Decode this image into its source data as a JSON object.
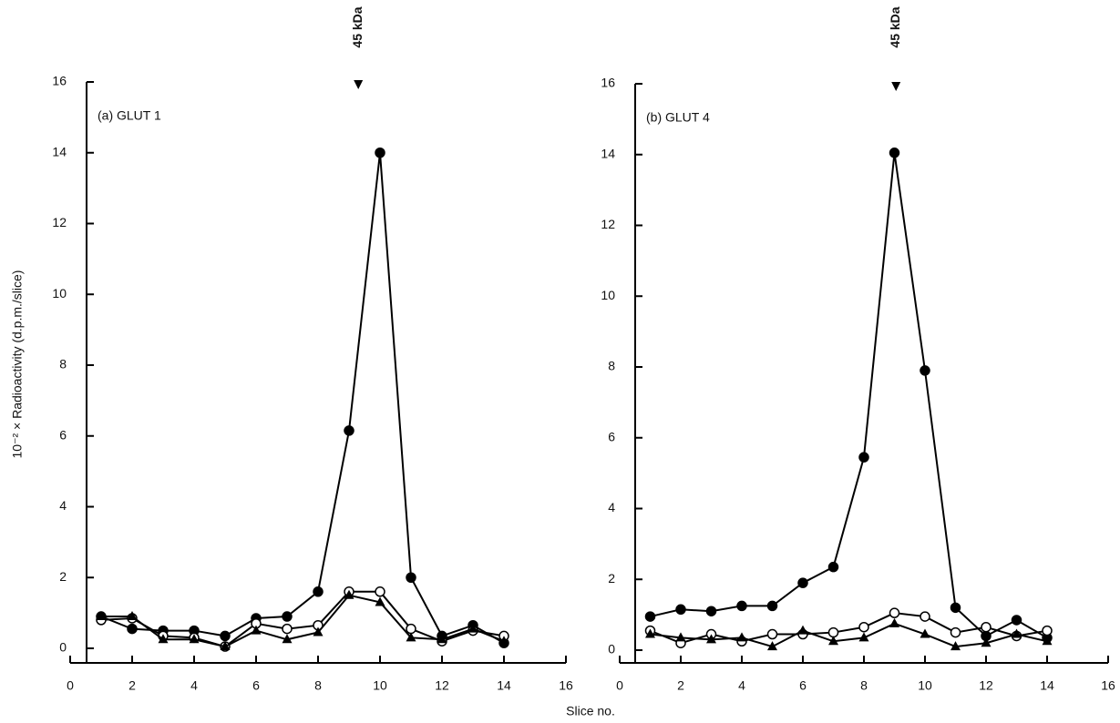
{
  "figure": {
    "xlabel": "Slice no.",
    "ylabel": "10⁻² × Radioactivity (d.p.m./slice)"
  },
  "chart_data": [
    {
      "type": "line",
      "title": "(a) GLUT 1",
      "annotation": {
        "text": "45 kDa",
        "x": 9.3
      },
      "x": [
        1,
        2,
        3,
        4,
        5,
        6,
        7,
        8,
        9,
        10,
        11,
        12,
        13,
        14
      ],
      "series": [
        {
          "marker": "filled-circle",
          "color": "#000",
          "values": [
            0.9,
            0.55,
            0.5,
            0.5,
            0.35,
            0.85,
            0.9,
            1.6,
            6.15,
            14.0,
            2.0,
            0.35,
            0.65,
            0.15
          ]
        },
        {
          "marker": "open-circle",
          "color": "#000",
          "values": [
            0.8,
            0.85,
            0.35,
            0.3,
            0.05,
            0.7,
            0.55,
            0.65,
            1.6,
            1.6,
            0.55,
            0.2,
            0.5,
            0.35
          ]
        },
        {
          "marker": "triangle",
          "color": "#000",
          "values": [
            0.9,
            0.9,
            0.25,
            0.25,
            0.05,
            0.5,
            0.25,
            0.45,
            1.5,
            1.3,
            0.3,
            0.25,
            0.55,
            0.2
          ]
        }
      ],
      "xlim": [
        0,
        16
      ],
      "ylim": [
        0,
        16
      ],
      "xticks": [
        0,
        2,
        4,
        6,
        8,
        10,
        12,
        14,
        16
      ],
      "yticks": [
        0,
        2,
        4,
        6,
        8,
        10,
        12,
        14,
        16
      ]
    },
    {
      "type": "line",
      "title": "(b) GLUT 4",
      "annotation": {
        "text": "45 kDa",
        "x": 9.05
      },
      "x": [
        1,
        2,
        3,
        4,
        5,
        6,
        7,
        8,
        9,
        10,
        11,
        12,
        13,
        14
      ],
      "series": [
        {
          "marker": "filled-circle",
          "color": "#000",
          "values": [
            0.95,
            1.15,
            1.1,
            1.25,
            1.25,
            1.9,
            2.35,
            5.45,
            14.05,
            7.9,
            1.2,
            0.4,
            0.85,
            0.35
          ]
        },
        {
          "marker": "open-circle",
          "color": "#000",
          "values": [
            0.55,
            0.2,
            0.45,
            0.25,
            0.45,
            0.45,
            0.5,
            0.65,
            1.05,
            0.95,
            0.5,
            0.65,
            0.4,
            0.55
          ]
        },
        {
          "marker": "triangle",
          "color": "#000",
          "values": [
            0.45,
            0.35,
            0.3,
            0.35,
            0.1,
            0.55,
            0.25,
            0.35,
            0.75,
            0.45,
            0.1,
            0.2,
            0.45,
            0.25
          ]
        }
      ],
      "xlim": [
        0,
        16
      ],
      "ylim": [
        0,
        16
      ],
      "xticks": [
        0,
        2,
        4,
        6,
        8,
        10,
        12,
        14,
        16
      ],
      "yticks": [
        0,
        2,
        4,
        6,
        8,
        10,
        12,
        14,
        16
      ]
    }
  ]
}
